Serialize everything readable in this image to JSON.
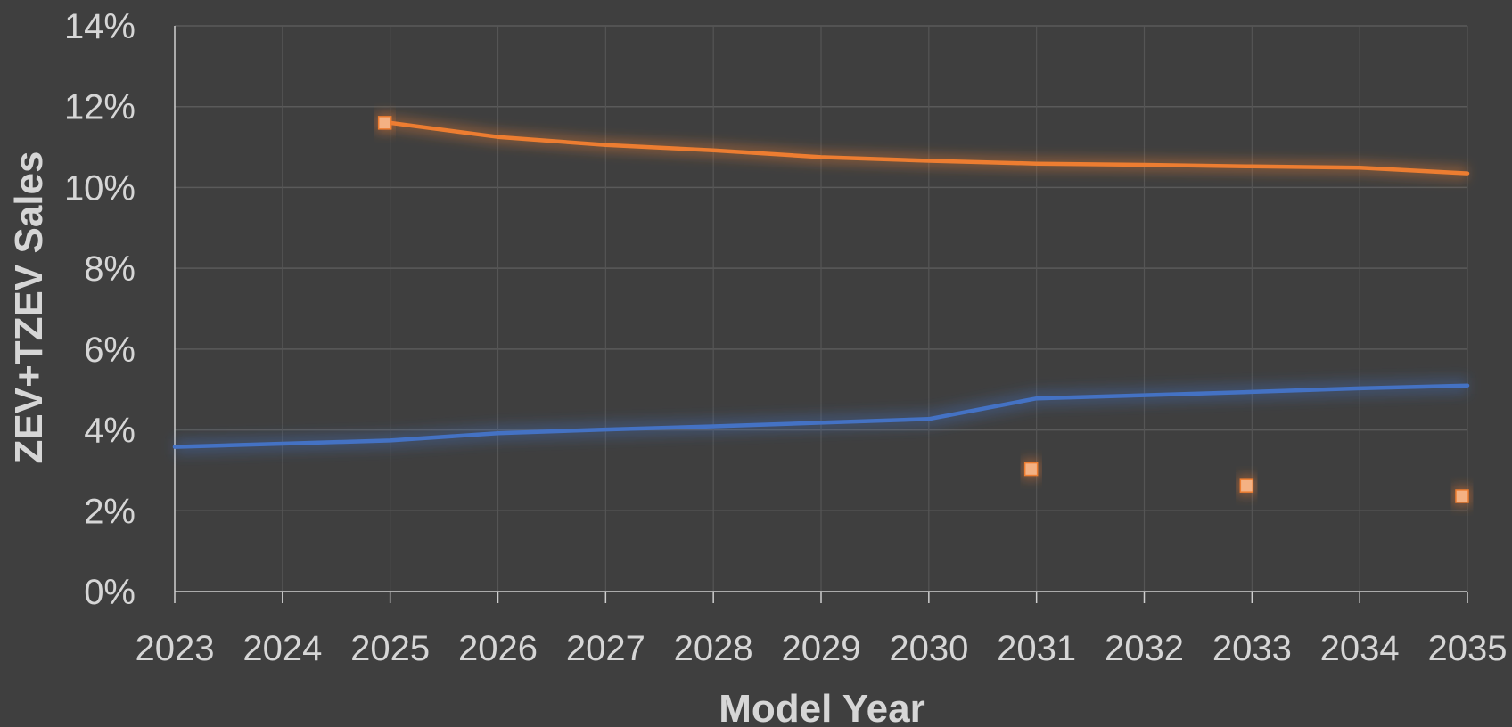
{
  "chart_data": {
    "type": "line",
    "xlabel": "Model Year",
    "ylabel": "ZEV+TZEV Sales",
    "x": [
      2023,
      2024,
      2025,
      2026,
      2027,
      2028,
      2029,
      2030,
      2031,
      2032,
      2033,
      2034,
      2035
    ],
    "xlim": [
      2023,
      2035
    ],
    "ylim": [
      0,
      0.14
    ],
    "y_ticks": [
      "0%",
      "2%",
      "4%",
      "6%",
      "8%",
      "10%",
      "12%",
      "14%"
    ],
    "x_ticks": [
      "2023",
      "2024",
      "2025",
      "2026",
      "2027",
      "2028",
      "2029",
      "2030",
      "2031",
      "2032",
      "2033",
      "2034",
      "2035"
    ],
    "grid": true,
    "legend": "none",
    "series": [
      {
        "kind": "line",
        "color": "#ED7D31",
        "points": [
          [
            2025,
            0.116
          ],
          [
            2026,
            0.1125
          ],
          [
            2027,
            0.1105
          ],
          [
            2028,
            0.1092
          ],
          [
            2029,
            0.1075
          ],
          [
            2030,
            0.1066
          ],
          [
            2031,
            0.1059
          ],
          [
            2032,
            0.1056
          ],
          [
            2033,
            0.1052
          ],
          [
            2034,
            0.1049
          ],
          [
            2035,
            0.1035
          ]
        ]
      },
      {
        "kind": "line",
        "color": "#4472C4",
        "points": [
          [
            2023,
            0.0358
          ],
          [
            2024,
            0.0366
          ],
          [
            2025,
            0.0374
          ],
          [
            2026,
            0.0392
          ],
          [
            2027,
            0.0401
          ],
          [
            2028,
            0.0409
          ],
          [
            2029,
            0.0418
          ],
          [
            2030,
            0.0427
          ],
          [
            2031,
            0.0478
          ],
          [
            2032,
            0.0486
          ],
          [
            2033,
            0.0494
          ],
          [
            2034,
            0.0503
          ],
          [
            2035,
            0.051
          ]
        ]
      },
      {
        "kind": "markers",
        "color": "#F4B183",
        "points": [
          [
            2025,
            0.116
          ],
          [
            2031,
            0.0303
          ],
          [
            2033,
            0.0262
          ],
          [
            2035,
            0.0236
          ]
        ]
      }
    ]
  }
}
